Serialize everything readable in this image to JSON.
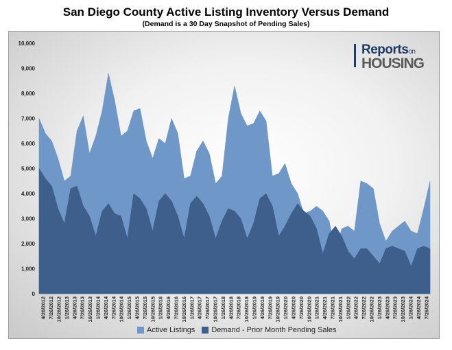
{
  "header": {
    "title": "San Diego County Active Listing Inventory Versus Demand",
    "subtitle": "(Demand is a 30 Day Snapshot of Pending Sales)"
  },
  "logo": {
    "line1": "Reports",
    "line1_suffix": "on",
    "line2": "HOUSING"
  },
  "legend": {
    "items": [
      {
        "label": "Active Listings",
        "color": "#6f97c8"
      },
      {
        "label": "Demand - Prior Month Pending Sales",
        "color": "#3e5f8c"
      }
    ]
  },
  "chart_data": {
    "type": "area",
    "title": "San Diego County Active Listing Inventory Versus Demand",
    "subtitle": "(Demand is a 30 Day Snapshot of Pending Sales)",
    "ylim": [
      0,
      10000
    ],
    "yticks": [
      "0",
      "1,000",
      "2,000",
      "3,000",
      "4,000",
      "5,000",
      "6,000",
      "7,000",
      "8,000",
      "9,000",
      "10,000"
    ],
    "grid": false,
    "legend_position": "bottom",
    "x_start": "4/26/2012",
    "x_end": "7/26/2024",
    "xtick_labels": [
      "4/26/2012",
      "7/26/2012",
      "10/26/2012",
      "1/26/2013",
      "4/26/2013",
      "7/26/2013",
      "10/26/2013",
      "1/26/2014",
      "4/26/2014",
      "7/26/2014",
      "10/26/2014",
      "1/26/2015",
      "4/26/2015",
      "7/26/2015",
      "10/26/2015",
      "1/26/2016",
      "4/26/2016",
      "7/26/2016",
      "10/26/2016",
      "1/26/2017",
      "4/26/2017",
      "7/26/2017",
      "10/26/2017",
      "1/26/2018",
      "4/26/2018",
      "7/26/2018",
      "10/26/2018",
      "1/26/2019",
      "4/26/2019",
      "7/26/2019",
      "10/26/2019",
      "1/26/2020",
      "4/26/2020",
      "7/26/2020",
      "10/26/2020",
      "1/26/2021",
      "4/26/2021",
      "7/26/2021",
      "10/26/2021",
      "1/26/2022",
      "4/26/2022",
      "7/26/2022",
      "10/26/2022",
      "1/26/2023",
      "4/26/2023",
      "7/26/2023",
      "10/26/2023",
      "1/26/2024",
      "4/26/2024",
      "7/26/2024"
    ],
    "series": [
      {
        "name": "Active Listings",
        "color": "#6f97c8",
        "values": [
          7000,
          6400,
          6100,
          5400,
          4500,
          4700,
          6500,
          7100,
          5600,
          6300,
          7300,
          8800,
          7700,
          6300,
          6500,
          7300,
          7400,
          6100,
          5400,
          6200,
          6000,
          7000,
          6400,
          4600,
          4700,
          5700,
          6100,
          5600,
          4400,
          4700,
          7000,
          8300,
          7200,
          6700,
          6800,
          7300,
          6900,
          4700,
          4800,
          5200,
          4400,
          4000,
          3200,
          3300,
          3500,
          3300,
          2900,
          1700,
          2600,
          2700,
          2500,
          4500,
          4400,
          4200,
          2800,
          2100,
          2500,
          2700,
          2900,
          2500,
          2400,
          3400,
          4500
        ]
      },
      {
        "name": "Demand - Prior Month Pending Sales",
        "color": "#3e5f8c",
        "values": [
          5000,
          4600,
          4300,
          3400,
          2800,
          4200,
          4300,
          3500,
          3100,
          2300,
          3300,
          3600,
          3200,
          3100,
          2200,
          4000,
          3800,
          3400,
          2500,
          3700,
          4000,
          3700,
          3100,
          2200,
          3600,
          3900,
          3600,
          3100,
          2200,
          2900,
          3400,
          3300,
          3000,
          2200,
          2800,
          3800,
          4000,
          3500,
          2300,
          2700,
          3200,
          3600,
          3300,
          3100,
          2600,
          1600,
          2400,
          2700,
          2300,
          1700,
          1400,
          1800,
          1800,
          1500,
          1200,
          1800,
          1900,
          1800,
          1700,
          1100,
          1800,
          1900,
          1800
        ]
      }
    ]
  }
}
